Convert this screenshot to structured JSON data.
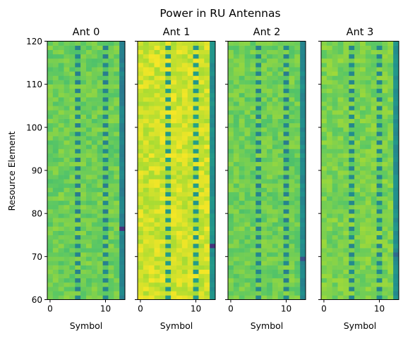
{
  "chart_data": {
    "type": "heatmap",
    "title": "Power in RU Antennas",
    "ylabel": "Resource Element",
    "xlabel": "Symbol",
    "colormap": "viridis",
    "xlim": [
      -0.5,
      13.5
    ],
    "ylim": [
      60,
      120
    ],
    "x_ticks": [
      0,
      10
    ],
    "y_ticks": [
      60,
      70,
      80,
      90,
      100,
      110,
      120
    ],
    "symbols": [
      0,
      1,
      2,
      3,
      4,
      5,
      6,
      7,
      8,
      9,
      10,
      11,
      12,
      13
    ],
    "resource_elements": [
      60,
      120
    ],
    "notes": {
      "pilot_symbols": [
        5,
        10
      ],
      "pilot_pattern": "every other resource element in symbols 5 and 10 is lower power",
      "symbol_13": "lower power (teal) across all resource elements"
    },
    "panels": [
      {
        "name": "Ant 0",
        "base_level": 0.78,
        "last_symbol_level": 0.45,
        "pilot_level": 0.45,
        "min_marker": {
          "symbol": 13,
          "resource_element": 76,
          "level": 0.15
        }
      },
      {
        "name": "Ant 1",
        "base_level": 0.93,
        "last_symbol_level": 0.5,
        "pilot_level": 0.55,
        "min_marker": {
          "symbol": 13,
          "resource_element": 72,
          "level": 0.15
        }
      },
      {
        "name": "Ant 2",
        "base_level": 0.78,
        "last_symbol_level": 0.48,
        "pilot_level": 0.45,
        "min_marker": {
          "symbol": 13,
          "resource_element": 69,
          "level": 0.25
        }
      },
      {
        "name": "Ant 3",
        "base_level": 0.8,
        "last_symbol_level": 0.5,
        "pilot_level": 0.47,
        "min_marker": {
          "symbol": 13,
          "resource_element": 70,
          "level": 0.35
        }
      }
    ]
  }
}
